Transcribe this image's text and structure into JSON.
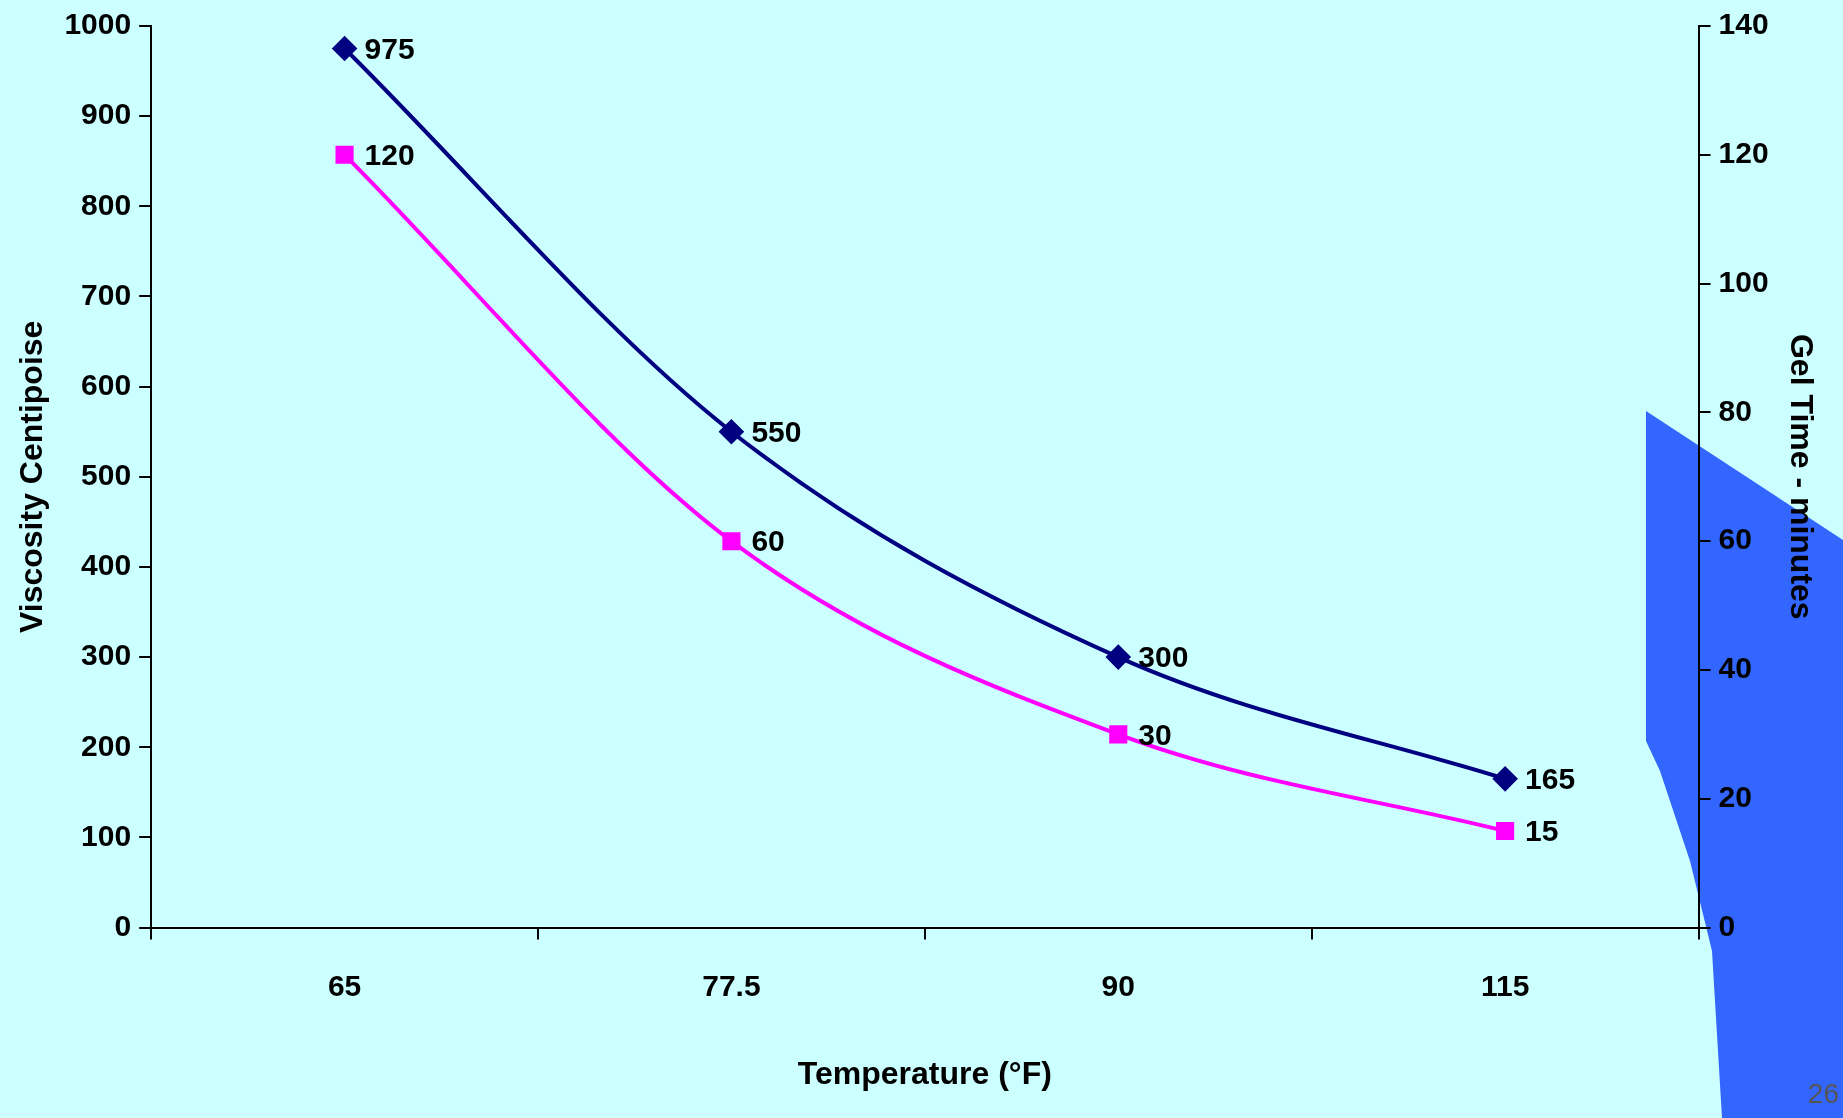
{
  "chart_data": {
    "type": "line",
    "xlabel": "Temperature (°F)",
    "ylabel": "Viscosity Centipoise",
    "y2label": "Gel Time - minutes",
    "categories": [
      "65",
      "77.5",
      "90",
      "115"
    ],
    "series": [
      {
        "color": "#000080",
        "values": [
          975,
          550,
          300,
          165
        ],
        "marker": "diamond"
      },
      {
        "color": "#ff00ff",
        "values": [
          120,
          60,
          30,
          15
        ],
        "axis": "y2",
        "marker": "square"
      }
    ],
    "ylim": [
      0,
      1000
    ],
    "yticks": [
      0,
      100,
      200,
      300,
      400,
      500,
      600,
      700,
      800,
      900,
      1000
    ],
    "y2lim": [
      0,
      140
    ],
    "y2ticks": [
      0,
      20,
      40,
      60,
      80,
      100,
      120,
      140
    ],
    "data_labels": true,
    "grid": false,
    "legend": false,
    "annotations": [
      "26"
    ]
  }
}
